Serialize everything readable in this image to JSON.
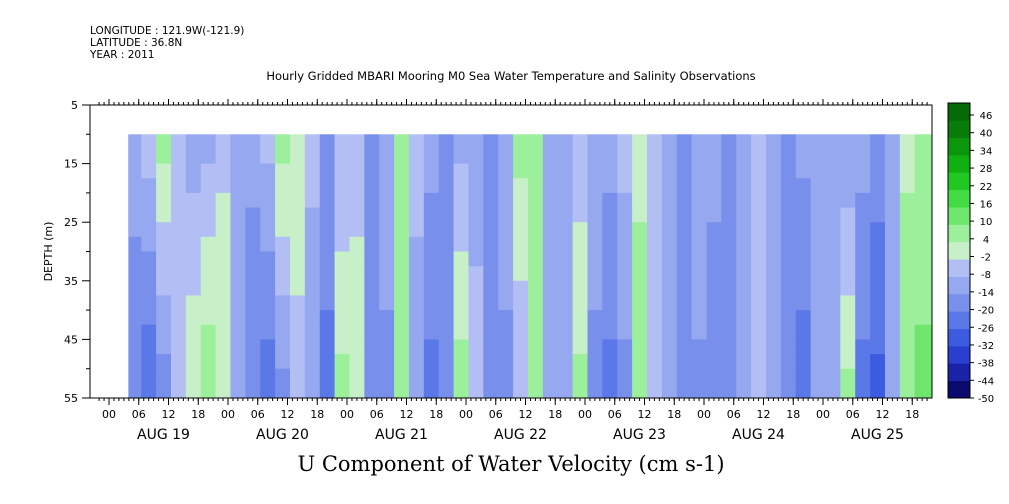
{
  "header": {
    "longitude": "LONGITUDE : 121.9W(-121.9)",
    "latitude": "LATITUDE : 36.8N",
    "year": "YEAR : 2011"
  },
  "plot_title": "Hourly Gridded MBARI Mooring M0 Sea Water Temperature and Salinity Observations",
  "bottom_title": "U Component of Water Velocity (cm s-1)",
  "chart_data": {
    "type": "heatmap",
    "title": "Hourly Gridded MBARI Mooring M0 Sea Water Temperature and Salinity Observations",
    "xlabel": "",
    "ylabel": "DEPTH (m)",
    "ylim": [
      55,
      5
    ],
    "y_ticks": [
      5,
      15,
      25,
      35,
      45,
      55
    ],
    "x_hour_ticks": [
      "00",
      "06",
      "12",
      "18"
    ],
    "days": [
      "AUG 19",
      "AUG 20",
      "AUG 21",
      "AUG 22",
      "AUG 23",
      "AUG 24",
      "AUG 25"
    ],
    "data_depth_range": [
      10,
      55
    ],
    "colorbar": {
      "labels": [
        "46",
        "40",
        "34",
        "28",
        "22",
        "16",
        "10",
        "4",
        "-2",
        "-8",
        "-14",
        "-20",
        "-26",
        "-32",
        "-38",
        "-44",
        "-50"
      ],
      "range": [
        -50,
        52
      ],
      "colors_bottom_to_top": [
        "#0a0a6e",
        "#1a22a8",
        "#2a3ed0",
        "#3d5be0",
        "#5a78e8",
        "#7890ec",
        "#96a8f0",
        "#b2bef4",
        "#c8f0c8",
        "#9cf09c",
        "#6ee66e",
        "#44dc44",
        "#22c822",
        "#10b010",
        "#0c960c",
        "#087c08",
        "#066a06"
      ]
    },
    "columns": [
      {
        "t": "AUG 19 03:00",
        "surface": -6,
        "bottom": -6
      },
      {
        "t": "AUG 19 05:00",
        "surface": -10,
        "bottom": -20
      },
      {
        "t": "AUG 19 08:00",
        "surface": -4,
        "bottom": -26
      },
      {
        "t": "AUG 19 11:00",
        "surface": 6,
        "bottom": -18
      },
      {
        "t": "AUG 19 14:00",
        "surface": -2,
        "bottom": -8
      },
      {
        "t": "AUG 19 17:00",
        "surface": -12,
        "bottom": 4
      },
      {
        "t": "AUG 19 20:00",
        "surface": -10,
        "bottom": 10
      },
      {
        "t": "AUG 19 23:00",
        "surface": -4,
        "bottom": 4
      },
      {
        "t": "AUG 20 02:00",
        "surface": -8,
        "bottom": -10
      },
      {
        "t": "AUG 20 05:00",
        "surface": -12,
        "bottom": -20
      },
      {
        "t": "AUG 20 08:00",
        "surface": -6,
        "bottom": -24
      },
      {
        "t": "AUG 20 11:00",
        "surface": 6,
        "bottom": -16
      },
      {
        "t": "AUG 20 14:00",
        "surface": 4,
        "bottom": -6
      },
      {
        "t": "AUG 20 17:00",
        "surface": -6,
        "bottom": -14
      },
      {
        "t": "AUG 20 20:00",
        "surface": -16,
        "bottom": -22
      },
      {
        "t": "AUG 20 23:00",
        "surface": -8,
        "bottom": 6
      },
      {
        "t": "AUG 21 02:00",
        "surface": -6,
        "bottom": 4
      },
      {
        "t": "AUG 21 05:00",
        "surface": -14,
        "bottom": -20
      },
      {
        "t": "AUG 21 08:00",
        "surface": -10,
        "bottom": -16
      },
      {
        "t": "AUG 21 11:00",
        "surface": 6,
        "bottom": 6
      },
      {
        "t": "AUG 21 14:00",
        "surface": -4,
        "bottom": -14
      },
      {
        "t": "AUG 21 17:00",
        "surface": -12,
        "bottom": -22
      },
      {
        "t": "AUG 21 20:00",
        "surface": -14,
        "bottom": -18
      },
      {
        "t": "AUG 21 23:00",
        "surface": -10,
        "bottom": 8
      },
      {
        "t": "AUG 22 02:00",
        "surface": -12,
        "bottom": -4
      },
      {
        "t": "AUG 22 05:00",
        "surface": -14,
        "bottom": -20
      },
      {
        "t": "AUG 22 08:00",
        "surface": -10,
        "bottom": -16
      },
      {
        "t": "AUG 22 11:00",
        "surface": 6,
        "bottom": -8
      },
      {
        "t": "AUG 22 14:00",
        "surface": 4,
        "bottom": 4
      },
      {
        "t": "AUG 22 17:00",
        "surface": -8,
        "bottom": -10
      },
      {
        "t": "AUG 22 20:00",
        "surface": -14,
        "bottom": -14
      },
      {
        "t": "AUG 22 23:00",
        "surface": -6,
        "bottom": 6
      },
      {
        "t": "AUG 23 02:00",
        "surface": -10,
        "bottom": -16
      },
      {
        "t": "AUG 23 05:00",
        "surface": -12,
        "bottom": -22
      },
      {
        "t": "AUG 23 08:00",
        "surface": -6,
        "bottom": -16
      },
      {
        "t": "AUG 23 11:00",
        "surface": 2,
        "bottom": 8
      },
      {
        "t": "AUG 23 14:00",
        "surface": -4,
        "bottom": -6
      },
      {
        "t": "AUG 23 17:00",
        "surface": -14,
        "bottom": -14
      },
      {
        "t": "AUG 23 20:00",
        "surface": -14,
        "bottom": -20
      },
      {
        "t": "AUG 23 23:00",
        "surface": -8,
        "bottom": -16
      },
      {
        "t": "AUG 24 02:00",
        "surface": -12,
        "bottom": -18
      },
      {
        "t": "AUG 24 05:00",
        "surface": -14,
        "bottom": -20
      },
      {
        "t": "AUG 24 08:00",
        "surface": -10,
        "bottom": -14
      },
      {
        "t": "AUG 24 11:00",
        "surface": -6,
        "bottom": -4
      },
      {
        "t": "AUG 24 14:00",
        "surface": -10,
        "bottom": -14
      },
      {
        "t": "AUG 24 17:00",
        "surface": -14,
        "bottom": -20
      },
      {
        "t": "AUG 24 20:00",
        "surface": -12,
        "bottom": -24
      },
      {
        "t": "AUG 24 23:00",
        "surface": -10,
        "bottom": -14
      },
      {
        "t": "AUG 25 02:00",
        "surface": -12,
        "bottom": -8
      },
      {
        "t": "AUG 25 05:00",
        "surface": -14,
        "bottom": 6
      },
      {
        "t": "AUG 25 08:00",
        "surface": -12,
        "bottom": -22
      },
      {
        "t": "AUG 25 11:00",
        "surface": -16,
        "bottom": -28
      },
      {
        "t": "AUG 25 14:00",
        "surface": -12,
        "bottom": -14
      },
      {
        "t": "AUG 25 17:00",
        "surface": 2,
        "bottom": 10
      },
      {
        "t": "AUG 25 20:00",
        "surface": 4,
        "bottom": 12
      }
    ]
  }
}
